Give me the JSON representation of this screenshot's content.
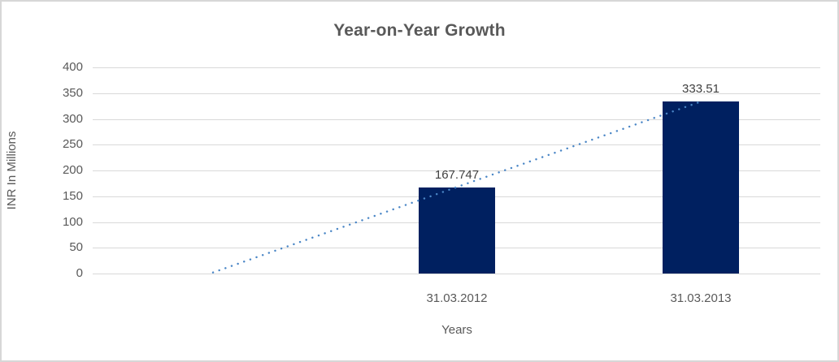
{
  "chart_data": {
    "type": "bar",
    "title": "Year-on-Year Growth",
    "xlabel": "Years",
    "ylabel": "INR In Millions",
    "categories": [
      "31.03.2012",
      "31.03.2013"
    ],
    "values": [
      167.747,
      333.51
    ],
    "data_labels": [
      "167.747",
      "333.51"
    ],
    "y_ticks": [
      0,
      50,
      100,
      150,
      200,
      250,
      300,
      350,
      400
    ],
    "ylim": [
      0,
      400
    ],
    "grid": true,
    "legend": "none",
    "colors": {
      "bar": "#002060",
      "trendline": "#4a86c6",
      "gridline": "#d9d9d9",
      "title_text": "#595959",
      "axis_text": "#595959",
      "data_label_text": "#404040",
      "background": "#ffffff",
      "frame_border": "#d7d7d7"
    },
    "trendline": {
      "type": "linear",
      "style": "dotted",
      "backward_periods": 1,
      "start_value": 1.98,
      "end_value": 333.51
    }
  }
}
